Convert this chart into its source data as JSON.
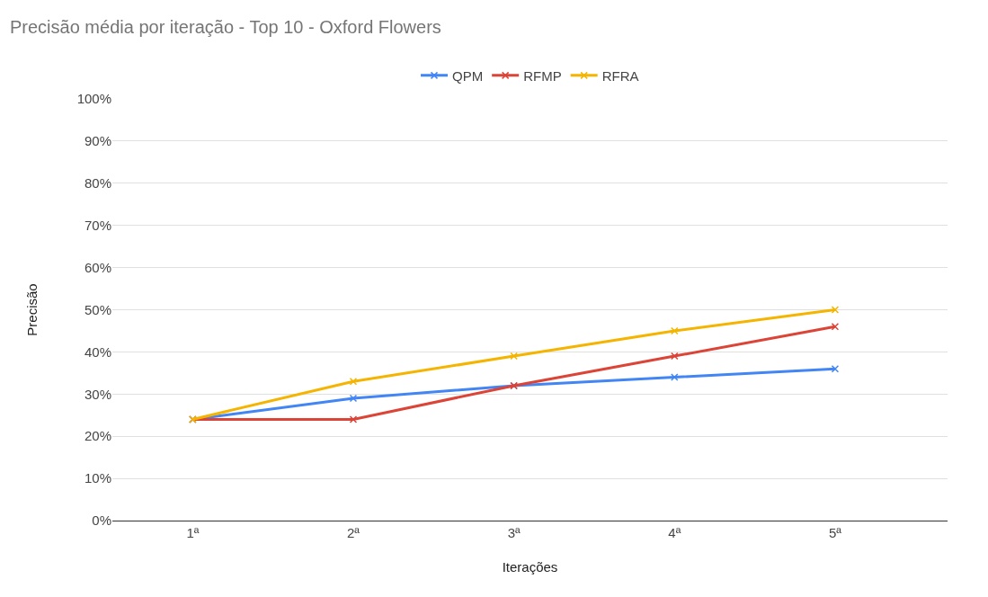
{
  "chart_data": {
    "type": "line",
    "title": "Precisão média por iteração - Top 10 - Oxford Flowers",
    "xlabel": "Iterações",
    "ylabel": "Precisão",
    "categories": [
      "1ª",
      "2ª",
      "3ª",
      "4ª",
      "5ª"
    ],
    "series": [
      {
        "name": "QPM",
        "color": "#4285f4",
        "values": [
          24,
          29,
          32,
          34,
          36
        ]
      },
      {
        "name": "RFMP",
        "color": "#db4437",
        "values": [
          24,
          24,
          32,
          39,
          46
        ]
      },
      {
        "name": "RFRA",
        "color": "#f4b400",
        "values": [
          24,
          33,
          39,
          45,
          50
        ]
      }
    ],
    "ylim": [
      0,
      100
    ],
    "yticks": [
      {
        "value": 0,
        "label": "0%"
      },
      {
        "value": 10,
        "label": "10%"
      },
      {
        "value": 20,
        "label": "20%"
      },
      {
        "value": 30,
        "label": "30%"
      },
      {
        "value": 40,
        "label": "40%"
      },
      {
        "value": 50,
        "label": "50%"
      },
      {
        "value": 60,
        "label": "60%"
      },
      {
        "value": 70,
        "label": "70%"
      },
      {
        "value": 80,
        "label": "80%"
      },
      {
        "value": 90,
        "label": "90%"
      },
      {
        "value": 100,
        "label": "100%"
      }
    ],
    "grid": "y",
    "legend": "top",
    "marker": "cross",
    "line_style": "solid"
  }
}
